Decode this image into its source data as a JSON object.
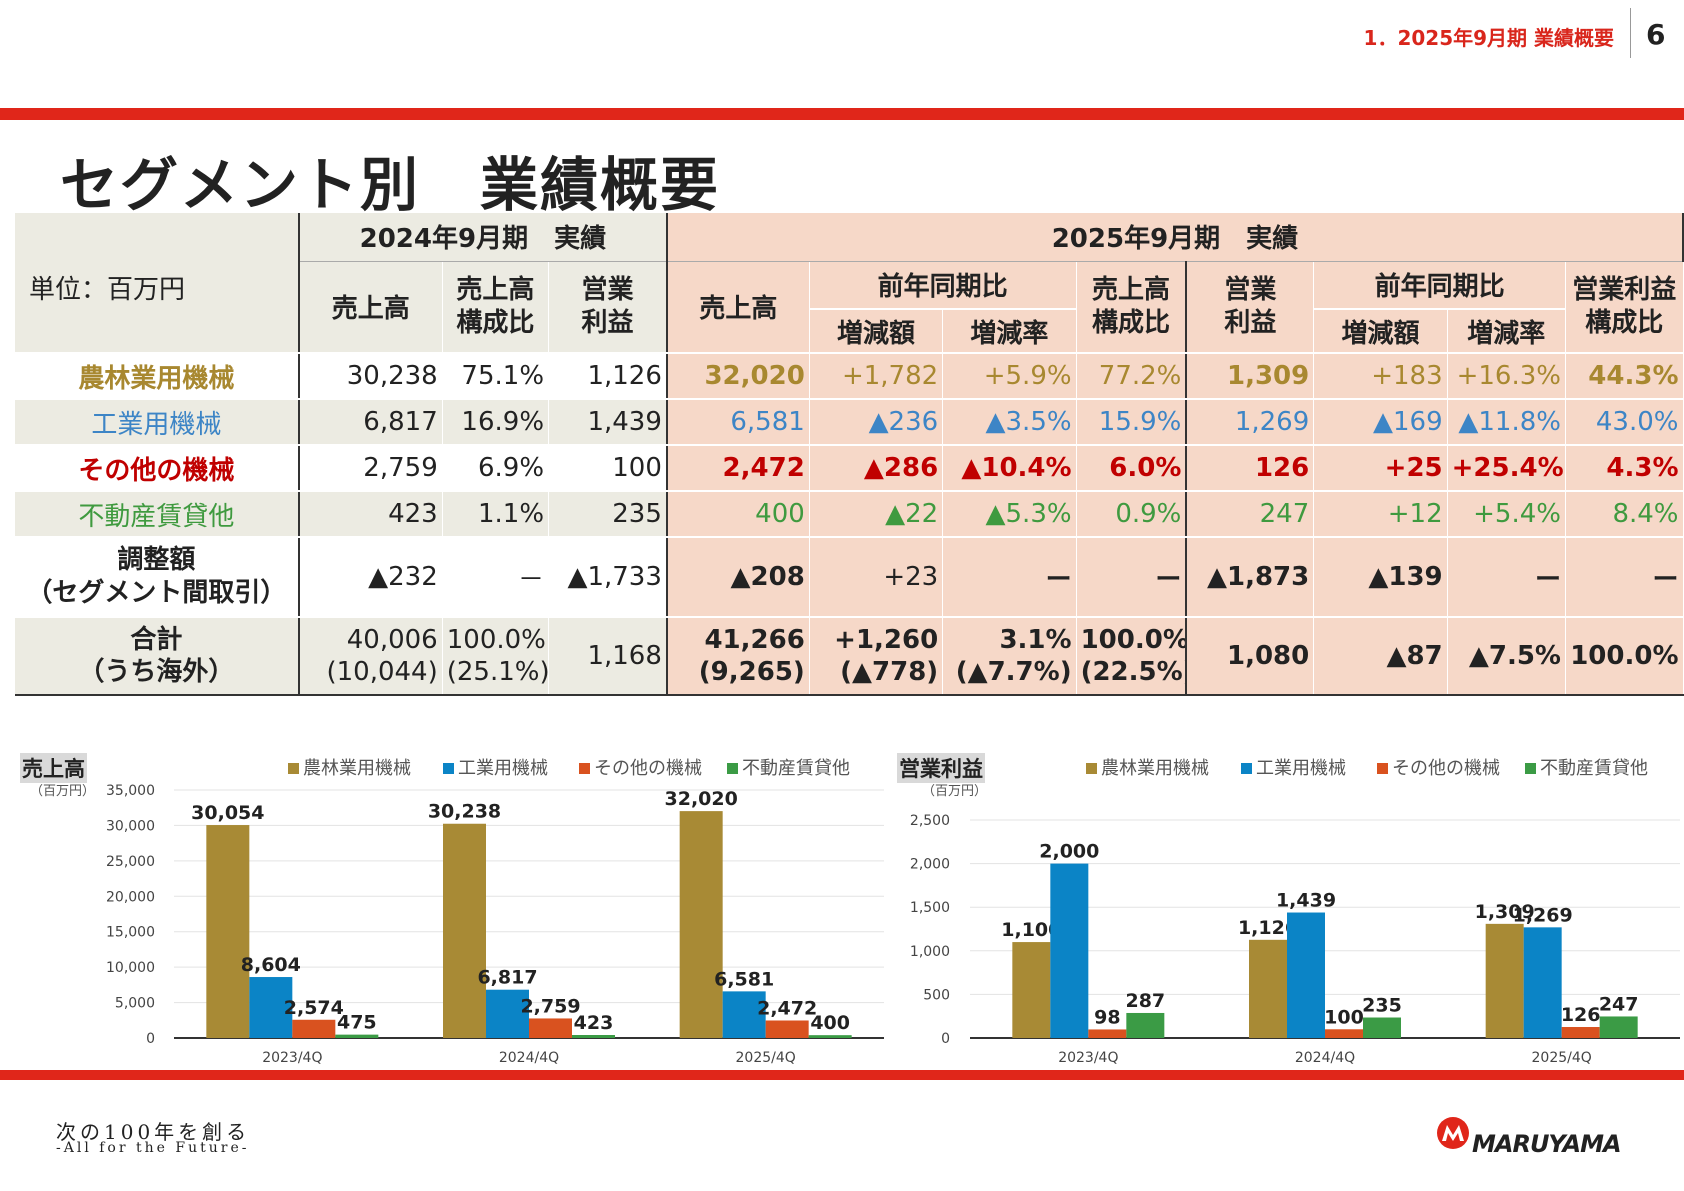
{
  "header": {
    "section": "1．2025年9月期 業績概要",
    "page": "6"
  },
  "title": "セグメント別　業績概要",
  "table": {
    "unit_label": "単位：百万円",
    "period_2024": "2024年9月期　実績",
    "period_2025": "2025年9月期　実績",
    "col_sales": "売上高",
    "col_sales_ratio_1": "売上高",
    "col_sales_ratio_2": "構成比",
    "col_op_1": "営業",
    "col_op_2": "利益",
    "col_yoy": "前年同期比",
    "col_diff": "増減額",
    "col_rate": "増減率",
    "col_op_ratio_1": "営業利益",
    "col_op_ratio_2": "構成比",
    "rows": [
      {
        "name": "農林業用機械",
        "v": [
          "30,238",
          "75.1%",
          "1,126",
          "32,020",
          "+1,782",
          "+5.9%",
          "77.2%",
          "1,309",
          "+183",
          "+16.3%",
          "44.3%"
        ]
      },
      {
        "name": "工業用機械",
        "v": [
          "6,817",
          "16.9%",
          "1,439",
          "6,581",
          "▲236",
          "▲3.5%",
          "15.9%",
          "1,269",
          "▲169",
          "▲11.8%",
          "43.0%"
        ]
      },
      {
        "name": "その他の機械",
        "v": [
          "2,759",
          "6.9%",
          "100",
          "2,472",
          "▲286",
          "▲10.4%",
          "6.0%",
          "126",
          "+25",
          "+25.4%",
          "4.3%"
        ]
      },
      {
        "name": "不動産賃貸他",
        "v": [
          "423",
          "1.1%",
          "235",
          "400",
          "▲22",
          "▲5.3%",
          "0.9%",
          "247",
          "+12",
          "+5.4%",
          "8.4%"
        ]
      }
    ],
    "adjust": {
      "name1": "調整額",
      "name2": "（セグメント間取引）",
      "v": [
        "▲232",
        "－",
        "▲1,733",
        "▲208",
        "+23",
        "ー",
        "ー",
        "▲1,873",
        "▲139",
        "ー",
        "ー"
      ]
    },
    "total": {
      "name1": "合計",
      "name2": "（うち海外）",
      "v1": [
        "40,006",
        "100.0%",
        "1,168",
        "41,266",
        "+1,260",
        "3.1%",
        "100.0%",
        "1,080",
        "▲87",
        "▲7.5%",
        "100.0%"
      ],
      "v2": [
        "(10,044)",
        "(25.1%)",
        "",
        "(9,265)",
        "(▲778)",
        "(▲7.7%)",
        "(22.5%)"
      ]
    }
  },
  "chart_data": [
    {
      "type": "bar",
      "title": "売上高",
      "ylabel": "（百万円）",
      "categories": [
        "2023/4Q",
        "2024/4Q",
        "2025/4Q"
      ],
      "ylim": [
        0,
        35000
      ],
      "yticks": [
        "0",
        "5,000",
        "10,000",
        "15,000",
        "20,000",
        "25,000",
        "30,000",
        "35,000"
      ],
      "legend_position": "top",
      "grid": true,
      "series": [
        {
          "name": "農林業用機械",
          "color": "#a88a35",
          "values": [
            30054,
            30238,
            32020
          ],
          "labels": [
            "30,054",
            "30,238",
            "32,020"
          ]
        },
        {
          "name": "工業用機械",
          "color": "#0b84c6",
          "values": [
            8604,
            6817,
            6581
          ],
          "labels": [
            "8,604",
            "6,817",
            "6,581"
          ]
        },
        {
          "name": "その他の機械",
          "color": "#d9521f",
          "values": [
            2574,
            2759,
            2472
          ],
          "labels": [
            "2,574",
            "2,759",
            "2,472"
          ]
        },
        {
          "name": "不動産賃貸他",
          "color": "#3b9b45",
          "values": [
            475,
            423,
            400
          ],
          "labels": [
            "475",
            "423",
            "400"
          ]
        }
      ]
    },
    {
      "type": "bar",
      "title": "営業利益",
      "ylabel": "（百万円）",
      "categories": [
        "2023/4Q",
        "2024/4Q",
        "2025/4Q"
      ],
      "ylim": [
        0,
        2500
      ],
      "yticks": [
        "0",
        "500",
        "1,000",
        "1,500",
        "2,000",
        "2,500"
      ],
      "legend_position": "top",
      "grid": true,
      "series": [
        {
          "name": "農林業用機械",
          "color": "#a88a35",
          "values": [
            1100,
            1126,
            1309
          ],
          "labels": [
            "1,100",
            "1,126",
            "1,309"
          ]
        },
        {
          "name": "工業用機械",
          "color": "#0b84c6",
          "values": [
            2000,
            1439,
            1269
          ],
          "labels": [
            "2,000",
            "1,439",
            "1,269"
          ]
        },
        {
          "name": "その他の機械",
          "color": "#d9521f",
          "values": [
            98,
            100,
            126
          ],
          "labels": [
            "98",
            "100",
            "126"
          ]
        },
        {
          "name": "不動産賃貸他",
          "color": "#3b9b45",
          "values": [
            287,
            235,
            247
          ],
          "labels": [
            "287",
            "235",
            "247"
          ]
        }
      ]
    }
  ],
  "footer": {
    "slogan": "次の100年を創る",
    "sub": "-All for the Future-",
    "logo": "MARUYAMA"
  }
}
